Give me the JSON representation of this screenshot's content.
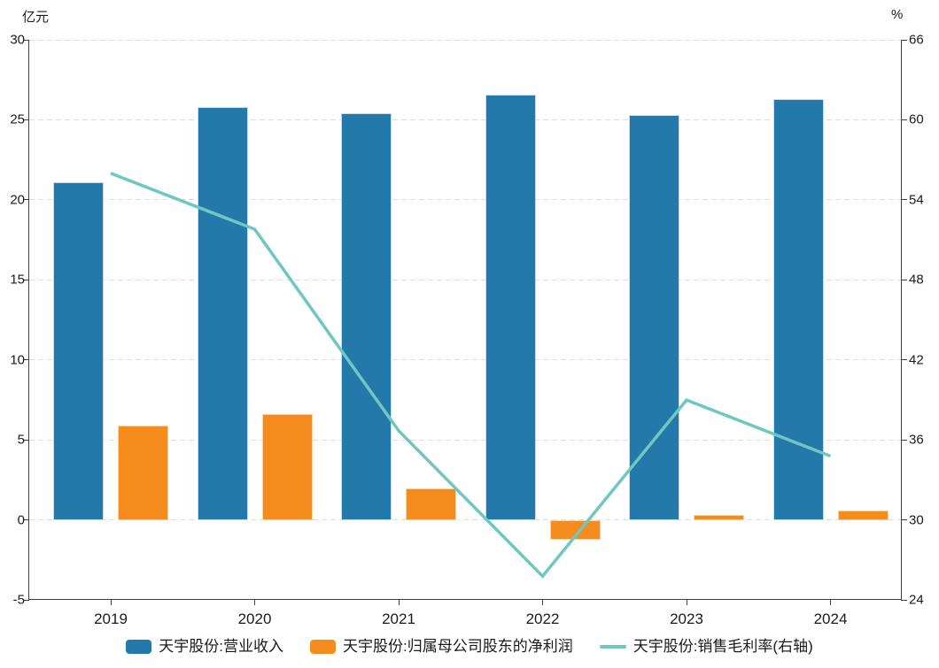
{
  "chart_data": {
    "type": "bar+line combo",
    "categories": [
      "2019",
      "2020",
      "2021",
      "2022",
      "2023",
      "2024"
    ],
    "series": [
      {
        "name": "天宇股份:营业收入",
        "type": "bar",
        "axis": "left",
        "color": "#2379a9",
        "values": [
          21.1,
          25.8,
          25.4,
          26.6,
          25.3,
          26.3
        ]
      },
      {
        "name": "天宇股份:归属母公司股东的净利润",
        "type": "bar",
        "axis": "left",
        "color": "#f78c1e",
        "values": [
          5.9,
          6.6,
          2.0,
          -1.2,
          0.3,
          0.6
        ]
      },
      {
        "name": "天宇股份:销售毛利率(右轴)",
        "type": "line",
        "axis": "right",
        "color": "#70c7c1",
        "values": [
          56.0,
          51.8,
          36.7,
          25.8,
          39.0,
          34.8
        ]
      }
    ],
    "left_axis": {
      "unit": "亿元",
      "min": -5,
      "max": 30,
      "ticks": [
        30,
        25,
        20,
        15,
        10,
        5,
        0,
        -5
      ]
    },
    "right_axis": {
      "unit": "%",
      "min": 24,
      "max": 66,
      "ticks": [
        66,
        60,
        54,
        48,
        42,
        36,
        30,
        24
      ]
    },
    "grid": "horizontal dashed, left and right gridlines aligned",
    "legend_position": "bottom center",
    "title": ""
  },
  "colors": {
    "axis": "#3f3f3f",
    "gridline": "#dedede",
    "text": "#1a1a1a",
    "background": "#ffffff"
  }
}
